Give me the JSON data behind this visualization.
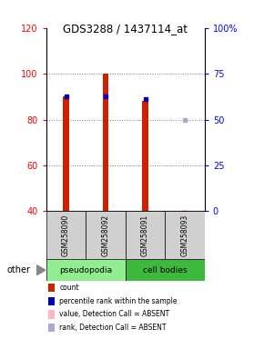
{
  "title": "GDS3288 / 1437114_at",
  "samples": [
    "GSM258090",
    "GSM258092",
    "GSM258091",
    "GSM258093"
  ],
  "ylim_left": [
    40,
    120
  ],
  "ylim_right": [
    0,
    100
  ],
  "yticks_left": [
    40,
    60,
    80,
    100,
    120
  ],
  "yticks_right": [
    0,
    25,
    50,
    75,
    100
  ],
  "red_bars": [
    90,
    100,
    88,
    null
  ],
  "blue_dots_left_scale": [
    90,
    90,
    89,
    null
  ],
  "pink_bars": [
    null,
    null,
    null,
    40.5
  ],
  "lavender_dots_left_scale": [
    null,
    null,
    null,
    80
  ],
  "bar_color": "#CC2200",
  "blue_color": "#0000BB",
  "pink_color": "#FFB6C1",
  "lavender_color": "#AAAACC",
  "legend_items": [
    {
      "color": "#CC2200",
      "label": "count"
    },
    {
      "color": "#0000BB",
      "label": "percentile rank within the sample"
    },
    {
      "color": "#FFB6C1",
      "label": "value, Detection Call = ABSENT"
    },
    {
      "color": "#AAAACC",
      "label": "rank, Detection Call = ABSENT"
    }
  ],
  "bg_color": "#ffffff",
  "gray_box_color": "#D0D0D0",
  "pseudo_color": "#90EE90",
  "cell_color": "#3CB93C",
  "bar_width": 0.15
}
